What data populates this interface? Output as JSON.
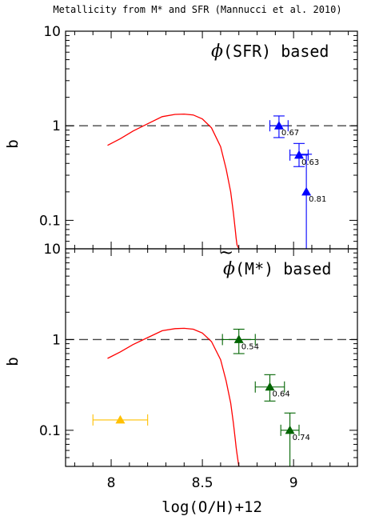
{
  "figure_title": "Metallicity from M* and SFR (Mannucci et al. 2010)",
  "colors": {
    "curve": "#ff0000",
    "blue": "#0000ff",
    "green": "#006400",
    "orange": "#ffc000",
    "dashed": "#444444"
  },
  "chart_data": [
    {
      "type": "scatter",
      "panel": "top",
      "title_symbol": "ϕ",
      "title": "(SFR) based",
      "xlabel": "",
      "ylabel": "b",
      "xlim": [
        7.75,
        9.35
      ],
      "ylim": [
        0.05,
        10
      ],
      "yscale": "log",
      "y_tick_labels": [
        "10",
        "1",
        "0.1"
      ],
      "reference_line_y": 1,
      "curve": {
        "x": [
          7.98,
          8.05,
          8.12,
          8.2,
          8.28,
          8.35,
          8.4,
          8.45,
          8.5,
          8.55,
          8.6,
          8.63,
          8.655,
          8.67,
          8.68,
          8.685,
          8.69,
          8.7
        ],
        "y": [
          0.62,
          0.73,
          0.88,
          1.05,
          1.25,
          1.32,
          1.33,
          1.3,
          1.18,
          0.95,
          0.6,
          0.35,
          0.2,
          0.12,
          0.08,
          0.065,
          0.055,
          0.05
        ]
      },
      "series": [
        {
          "name": "",
          "color": "#0000ff",
          "x": [
            8.92,
            9.03,
            9.07
          ],
          "y": [
            1.0,
            0.49,
            0.2
          ],
          "xerr": [
            0.05,
            0.05,
            0.0
          ],
          "y_low": [
            0.75,
            0.37,
            0.05
          ],
          "y_high": [
            1.27,
            0.65,
            0.5
          ],
          "labels": [
            "0.67",
            "0.63",
            "0.81"
          ]
        }
      ]
    },
    {
      "type": "scatter",
      "panel": "bottom",
      "title_symbol": "ϕ",
      "title": "(M*) based",
      "xlabel": "log(O/H)+12",
      "ylabel": "b",
      "xlim": [
        7.75,
        9.35
      ],
      "ylim": [
        0.04,
        10
      ],
      "yscale": "log",
      "x_tick_labels": [
        "8",
        "8.5",
        "9"
      ],
      "y_tick_labels": [
        "10",
        "1",
        "0.1"
      ],
      "reference_line_y": 1,
      "curve": {
        "x": [
          7.98,
          8.05,
          8.12,
          8.2,
          8.28,
          8.35,
          8.4,
          8.45,
          8.5,
          8.55,
          8.6,
          8.63,
          8.655,
          8.67,
          8.68,
          8.685,
          8.69,
          8.7
        ],
        "y": [
          0.62,
          0.73,
          0.88,
          1.05,
          1.25,
          1.32,
          1.33,
          1.3,
          1.18,
          0.95,
          0.6,
          0.35,
          0.2,
          0.12,
          0.08,
          0.065,
          0.055,
          0.04
        ]
      },
      "series": [
        {
          "name": "",
          "color": "#006400",
          "x": [
            8.7,
            8.87,
            8.98
          ],
          "y": [
            1.0,
            0.3,
            0.1
          ],
          "xerr": [
            0.09,
            0.08,
            0.05
          ],
          "y_low": [
            0.7,
            0.21,
            0.04
          ],
          "y_high": [
            1.3,
            0.41,
            0.155
          ],
          "labels": [
            "0.54",
            "0.64",
            "0.74"
          ]
        },
        {
          "name": "",
          "color": "#ffc000",
          "x": [
            8.05
          ],
          "y": [
            0.13
          ],
          "xerr": [
            0.15
          ],
          "y_low": [
            0.13
          ],
          "y_high": [
            0.13
          ],
          "labels": [
            ""
          ]
        }
      ]
    }
  ]
}
